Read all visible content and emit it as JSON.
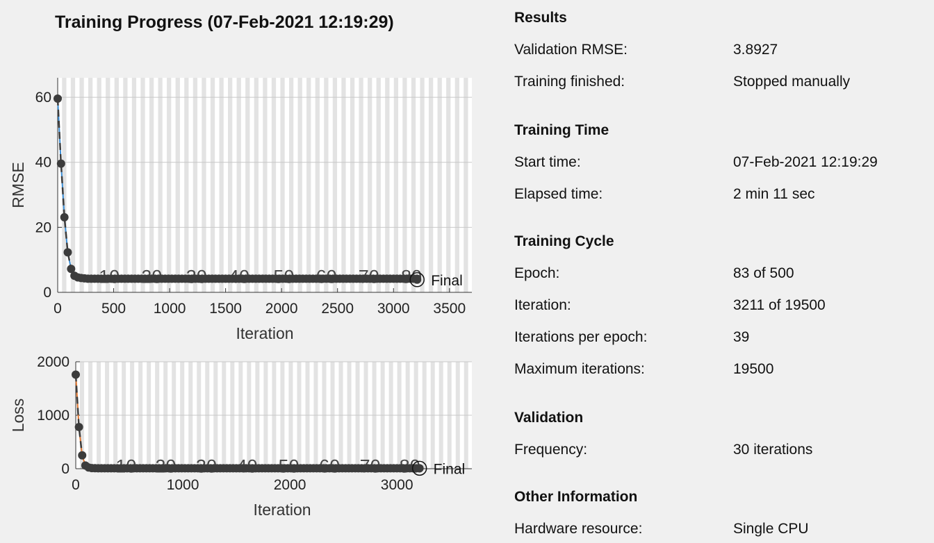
{
  "title": "Training Progress (07-Feb-2021 12:19:29)",
  "colors": {
    "background": "#f0f0f0",
    "epoch_band": "#e3e3e3",
    "marker": "#3c3c3c",
    "rmse_line": "#3b8ed6",
    "loss_line": "#e0742c"
  },
  "chart_data": [
    {
      "type": "line",
      "name": "rmse-plot",
      "xlabel": "Iteration",
      "ylabel": "RMSE",
      "xlim": [
        0,
        3700
      ],
      "ylim": [
        0,
        66
      ],
      "xticks": [
        "0",
        "500",
        "1000",
        "1500",
        "2000",
        "2500",
        "3000",
        "3500"
      ],
      "xtick_values": [
        0,
        500,
        1000,
        1500,
        2000,
        2500,
        3000,
        3500
      ],
      "yticks": [
        "0",
        "20",
        "40",
        "60"
      ],
      "ytick_values": [
        0,
        20,
        40,
        60
      ],
      "grid": true,
      "epoch_labels": [
        "10",
        "20",
        "30",
        "40",
        "50",
        "60",
        "70",
        "80"
      ],
      "epoch_label_iterations": [
        460,
        840,
        1240,
        1620,
        2020,
        2400,
        2780,
        3160
      ],
      "iterations_per_epoch": 39,
      "final_label": "Final",
      "final": {
        "x": 3211,
        "y": 3.8927
      },
      "points": [
        [
          0,
          59.6
        ],
        [
          30,
          39.6
        ],
        [
          60,
          23.1
        ],
        [
          90,
          12.3
        ],
        [
          120,
          7.2
        ],
        [
          150,
          5.1
        ],
        [
          180,
          4.6
        ],
        [
          210,
          4.4
        ],
        [
          240,
          4.3
        ]
      ],
      "tail_level": 4.2
    },
    {
      "type": "line",
      "name": "loss-plot",
      "xlabel": "Iteration",
      "ylabel": "Loss",
      "xlim": [
        0,
        3700
      ],
      "ylim": [
        0,
        2000
      ],
      "xticks": [
        "0",
        "1000",
        "2000",
        "3000"
      ],
      "xtick_values": [
        0,
        1000,
        2000,
        3000
      ],
      "yticks": [
        "0",
        "1000",
        "2000"
      ],
      "ytick_values": [
        0,
        1000,
        2000
      ],
      "grid": true,
      "epoch_labels": [
        "10",
        "20",
        "30",
        "40",
        "50",
        "60",
        "70",
        "80"
      ],
      "epoch_label_iterations": [
        470,
        840,
        1220,
        1600,
        1990,
        2370,
        2750,
        3120
      ],
      "iterations_per_epoch": 39,
      "final_label": "Final",
      "final": {
        "x": 3211,
        "y": 8
      },
      "points": [
        [
          0,
          1760
        ],
        [
          30,
          780
        ],
        [
          60,
          250
        ],
        [
          90,
          60
        ],
        [
          120,
          22
        ],
        [
          150,
          12
        ],
        [
          180,
          9
        ]
      ],
      "tail_level": 8
    }
  ],
  "panel": {
    "sections": [
      {
        "heading": "Results",
        "rows": [
          {
            "label": "Validation RMSE:",
            "value": "3.8927"
          },
          {
            "label": "Training finished:",
            "value": "Stopped manually"
          }
        ]
      },
      {
        "heading": "Training Time",
        "rows": [
          {
            "label": "Start time:",
            "value": "07-Feb-2021 12:19:29"
          },
          {
            "label": "Elapsed time:",
            "value": "2 min 11 sec"
          }
        ]
      },
      {
        "heading": "Training Cycle",
        "rows": [
          {
            "label": "Epoch:",
            "value": "83 of 500"
          },
          {
            "label": "Iteration:",
            "value": "3211 of 19500"
          },
          {
            "label": "Iterations per epoch:",
            "value": "39"
          },
          {
            "label": "Maximum iterations:",
            "value": "19500"
          }
        ]
      },
      {
        "heading": "Validation",
        "rows": [
          {
            "label": "Frequency:",
            "value": "30 iterations"
          }
        ]
      },
      {
        "heading": "Other Information",
        "rows": [
          {
            "label": "Hardware resource:",
            "value": "Single CPU"
          }
        ]
      }
    ]
  }
}
